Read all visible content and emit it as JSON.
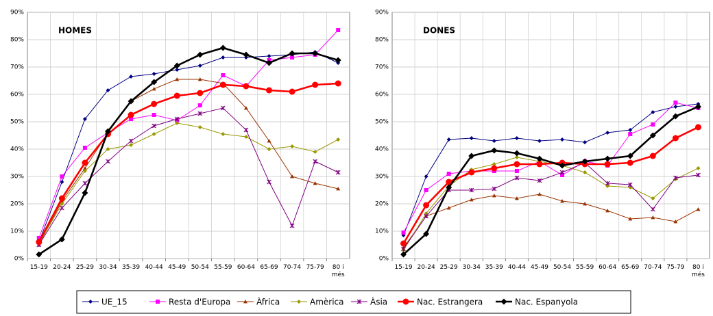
{
  "chart_data": [
    {
      "type": "line",
      "title": "HOMES",
      "categories": [
        "15-19",
        "20-24",
        "25-29",
        "30-34",
        "35-39",
        "40-44",
        "45-49",
        "50-54",
        "55-59",
        "60-64",
        "65-69",
        "70-74",
        "75-79",
        "80 i més"
      ],
      "ylim": [
        0,
        90
      ],
      "yticks": [
        {
          "value": 0,
          "label": "0%"
        },
        {
          "value": 10,
          "label": "10%"
        },
        {
          "value": 20,
          "label": "20%"
        },
        {
          "value": 30,
          "label": "30%"
        },
        {
          "value": 40,
          "label": "40%"
        },
        {
          "value": 50,
          "label": "50%"
        },
        {
          "value": 60,
          "label": "60%"
        },
        {
          "value": 70,
          "label": "70%"
        },
        {
          "value": 80,
          "label": "80%"
        },
        {
          "value": 90,
          "label": "90%"
        }
      ],
      "grid": true,
      "series": [
        {
          "name": "UE_15",
          "color": "#000080",
          "marker": "diamond",
          "values": [
            6,
            28,
            51,
            61.5,
            66.5,
            67.5,
            69,
            70.5,
            73.5,
            73.5,
            74,
            74.5,
            75.5,
            71.5
          ]
        },
        {
          "name": "Resta d'Europa",
          "color": "#ff00ff",
          "marker": "square",
          "values": [
            7.5,
            30,
            40.5,
            46,
            51,
            52.5,
            50.5,
            56,
            67,
            63,
            72.5,
            73.5,
            74.5,
            83.5
          ]
        },
        {
          "name": "Àfrica",
          "color": "#993300",
          "marker": "triangle",
          "values": [
            5,
            21,
            33,
            46,
            57.5,
            62,
            65.5,
            65.5,
            64,
            55,
            43,
            30,
            27.5,
            25.5
          ]
        },
        {
          "name": "Amèrica",
          "color": "#999900",
          "marker": "diamond",
          "values": [
            5.5,
            20,
            32,
            40,
            41.5,
            45.5,
            49.5,
            48,
            45.5,
            44.5,
            40,
            41,
            39,
            43.5
          ]
        },
        {
          "name": "Àsia",
          "color": "#800080",
          "marker": "star",
          "values": [
            5,
            18.5,
            27.5,
            35.5,
            43,
            48.5,
            51,
            53,
            55,
            47,
            28,
            12,
            35.5,
            31.5
          ]
        },
        {
          "name": "Nac. Estrangera",
          "color": "#ff0000",
          "marker": "circle",
          "bold": true,
          "values": [
            6,
            22,
            35,
            45.5,
            52.5,
            56.5,
            59.5,
            60.5,
            63.5,
            63,
            61.5,
            61,
            63.5,
            64
          ]
        },
        {
          "name": "Nac. Espanyola",
          "color": "#000000",
          "marker": "diamond",
          "bold": true,
          "values": [
            1.5,
            7,
            24,
            46.5,
            57.5,
            64.5,
            70.5,
            74.5,
            77,
            74.5,
            71.5,
            75,
            75,
            72.5
          ]
        }
      ]
    },
    {
      "type": "line",
      "title": "DONES",
      "categories": [
        "15-19",
        "20-24",
        "25-29",
        "30-34",
        "35-39",
        "40-44",
        "45-49",
        "50-54",
        "55-59",
        "60-64",
        "65-69",
        "70-74",
        "75-79",
        "80 i més"
      ],
      "ylim": [
        0,
        90
      ],
      "yticks": [
        {
          "value": 0,
          "label": "0%"
        },
        {
          "value": 10,
          "label": "10%"
        },
        {
          "value": 20,
          "label": "20%"
        },
        {
          "value": 30,
          "label": "30%"
        },
        {
          "value": 40,
          "label": "40%"
        },
        {
          "value": 50,
          "label": "50%"
        },
        {
          "value": 60,
          "label": "60%"
        },
        {
          "value": 70,
          "label": "70%"
        },
        {
          "value": 80,
          "label": "80%"
        },
        {
          "value": 90,
          "label": "90%"
        }
      ],
      "grid": true,
      "series": [
        {
          "name": "UE_15",
          "color": "#000080",
          "marker": "diamond",
          "values": [
            8.5,
            30,
            43.5,
            44,
            43,
            44,
            43,
            43.5,
            42.5,
            46,
            47,
            53.5,
            55.5,
            56.5
          ]
        },
        {
          "name": "Resta d'Europa",
          "color": "#ff00ff",
          "marker": "square",
          "values": [
            9.5,
            25,
            31,
            32,
            32,
            32,
            35.5,
            30.5,
            35.5,
            34,
            45.5,
            49,
            57,
            55
          ]
        },
        {
          "name": "Àfrica",
          "color": "#993300",
          "marker": "triangle",
          "values": [
            4,
            15.5,
            18.5,
            21.5,
            23,
            22,
            23.5,
            21,
            20,
            17.5,
            14.5,
            15,
            13.5,
            18
          ]
        },
        {
          "name": "Amèrica",
          "color": "#999900",
          "marker": "diamond",
          "values": [
            3,
            16.5,
            26.5,
            32.5,
            34.5,
            37,
            35.5,
            34,
            31.5,
            26.5,
            26,
            22,
            29,
            33
          ]
        },
        {
          "name": "Àsia",
          "color": "#800080",
          "marker": "star",
          "values": [
            3.5,
            15.5,
            25,
            25,
            25.5,
            29.5,
            28.5,
            31.5,
            35,
            27.5,
            27,
            18,
            29.5,
            30.5
          ]
        },
        {
          "name": "Nac. Estrangera",
          "color": "#ff0000",
          "marker": "circle",
          "bold": true,
          "values": [
            5.5,
            19.5,
            28,
            31.5,
            33,
            34.5,
            34.5,
            35,
            34.5,
            34.5,
            35,
            37.5,
            44,
            48
          ]
        },
        {
          "name": "Nac. Espanyola",
          "color": "#000000",
          "marker": "diamond",
          "bold": true,
          "values": [
            1.5,
            9,
            26,
            37.5,
            39.5,
            38.5,
            36.5,
            34,
            35.5,
            36.5,
            37.5,
            45,
            52,
            55.5
          ]
        }
      ]
    }
  ]
}
